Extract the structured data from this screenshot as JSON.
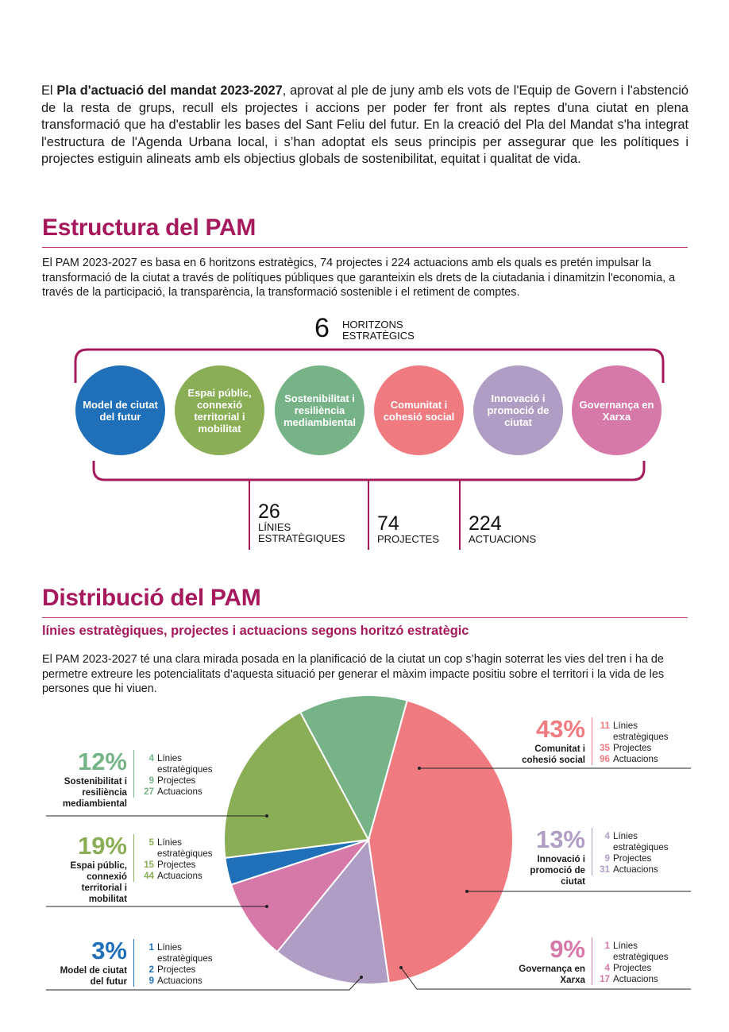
{
  "intro": {
    "bold": "Pla d'actuació del mandat 2023-2027",
    "prefix": "El ",
    "text": ", aprovat al ple de juny amb els vots de l'Equip de Govern i l'abstenció de la resta de grups, recull els projectes i accions per poder fer front als reptes d'una ciutat en plena transformació que ha d'establir les bases del Sant Feliu del futur. En la creació del Pla del Mandat s'ha integrat l'estructura de l'Agenda Urbana local, i s’han adoptat els seus principis per assegurar que les polítiques i projectes estiguin alineats amb els objectius globals de sostenibilitat, equitat i qualitat de vida."
  },
  "estructura": {
    "title": "Estructura del PAM",
    "text": "El PAM 2023-2027 es basa en 6 horitzons estratègics, 74 projectes i 224 actuacions amb els quals es pretén impulsar la transformació de la ciutat a través de polítiques públiques que garanteixin els drets de la ciutadania i dinamitzin l'economia, a través de la participació, la transparència, la transformació sostenible i el retiment de comptes.",
    "horizons_num": "6",
    "horizons_label_1": "HORITZONS",
    "horizons_label_2": "ESTRATÈGICS",
    "circles": [
      {
        "label": "Model de ciutat del futur",
        "color": "#1f70b8"
      },
      {
        "label": "Espai públic, connexió territorial i mobilitat",
        "color": "#8aae55"
      },
      {
        "label": "Sostenibilitat i resiliència mediambiental",
        "color": "#76b488"
      },
      {
        "label": "Comunitat i cohesió social",
        "color": "#ef7b80"
      },
      {
        "label": "Innovació i promoció de ciutat",
        "color": "#b09dc4"
      },
      {
        "label": "Governança en Xarxa",
        "color": "#d678a8"
      }
    ],
    "totals": [
      {
        "num": "26",
        "l1": "LÍNIES",
        "l2": "ESTRATÈGIQUES"
      },
      {
        "num": "74",
        "l1": "PROJECTES",
        "l2": ""
      },
      {
        "num": "224",
        "l1": "ACTUACIONS",
        "l2": ""
      }
    ]
  },
  "distribucio": {
    "title": "Distribució del PAM",
    "subtitle": "línies estratègiques, projectes i actuacions segons horitzó estratègic",
    "text": "El PAM 2023-2027 té una clara mirada posada en la planificació de la ciutat un cop s’hagin soterrat les vies del tren i ha de permetre extreure les potencialitats d’aquesta situació per generar el màxim impacte positiu sobre el territori i la vida de les persones que hi viuen.",
    "words": {
      "lines_1": "Línies",
      "lines_2": "estratègiques",
      "projects": "Projectes",
      "actions": "Actuacions"
    }
  },
  "chart_data": {
    "type": "pie",
    "categories": [
      "Comunitat i cohesió social",
      "Innovació i promoció de ciutat",
      "Governança en Xarxa",
      "Model de ciutat del futur",
      "Espai públic, connexió territorial i mobilitat",
      "Sostenibilitat i resiliència mediambiental"
    ],
    "values": [
      43,
      13,
      9,
      3,
      19,
      12
    ],
    "labels": [
      "43%",
      "13%",
      "9%",
      "3%",
      "19%",
      "12%"
    ],
    "colors": [
      "#ef7b80",
      "#b09dc4",
      "#d678a8",
      "#1f70b8",
      "#8aae55",
      "#76b488"
    ],
    "lines": [
      11,
      4,
      1,
      1,
      5,
      4
    ],
    "projects": [
      35,
      9,
      4,
      2,
      15,
      9
    ],
    "actions": [
      96,
      31,
      17,
      9,
      44,
      27
    ]
  }
}
